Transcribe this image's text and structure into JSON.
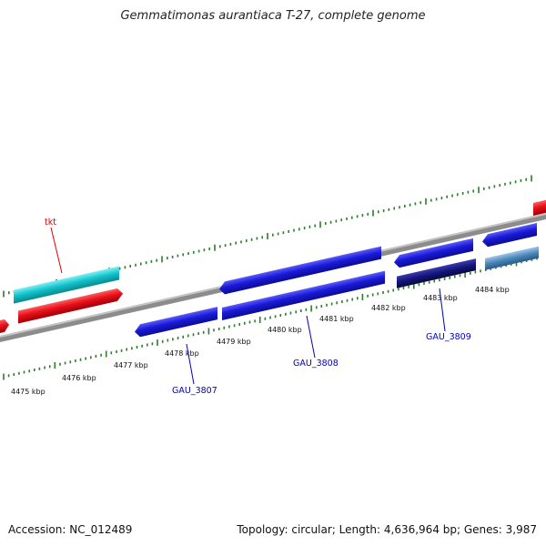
{
  "title": "Gemmatimonas aurantiaca T-27, complete genome",
  "footer": {
    "accession": "Accession: NC_012489",
    "summary": "Topology: circular; Length: 4,636,964 bp; Genes: 3,987"
  },
  "colors": {
    "backbone": "#8c8c8c",
    "tick": "#2e7d2e",
    "gene_red": "#e8101a",
    "gene_cyan": "#14c4cc",
    "gene_blue": "#1a1ad8",
    "gene_navy": "#14147a",
    "gene_steel": "#4a86b8",
    "label_red": "#dd0000",
    "label_blue": "#0000bb"
  },
  "scale_labels": [
    "4475 kbp",
    "4476 kbp",
    "4477 kbp",
    "4478 kbp",
    "4479 kbp",
    "4480 kbp",
    "4481 kbp",
    "4482 kbp",
    "4483 kbp",
    "4484 kbp"
  ],
  "gene_labels": {
    "tkt": "tkt",
    "gau3807": "GAU_3807",
    "gau3808": "GAU_3808",
    "gau3809": "GAU_3809"
  }
}
